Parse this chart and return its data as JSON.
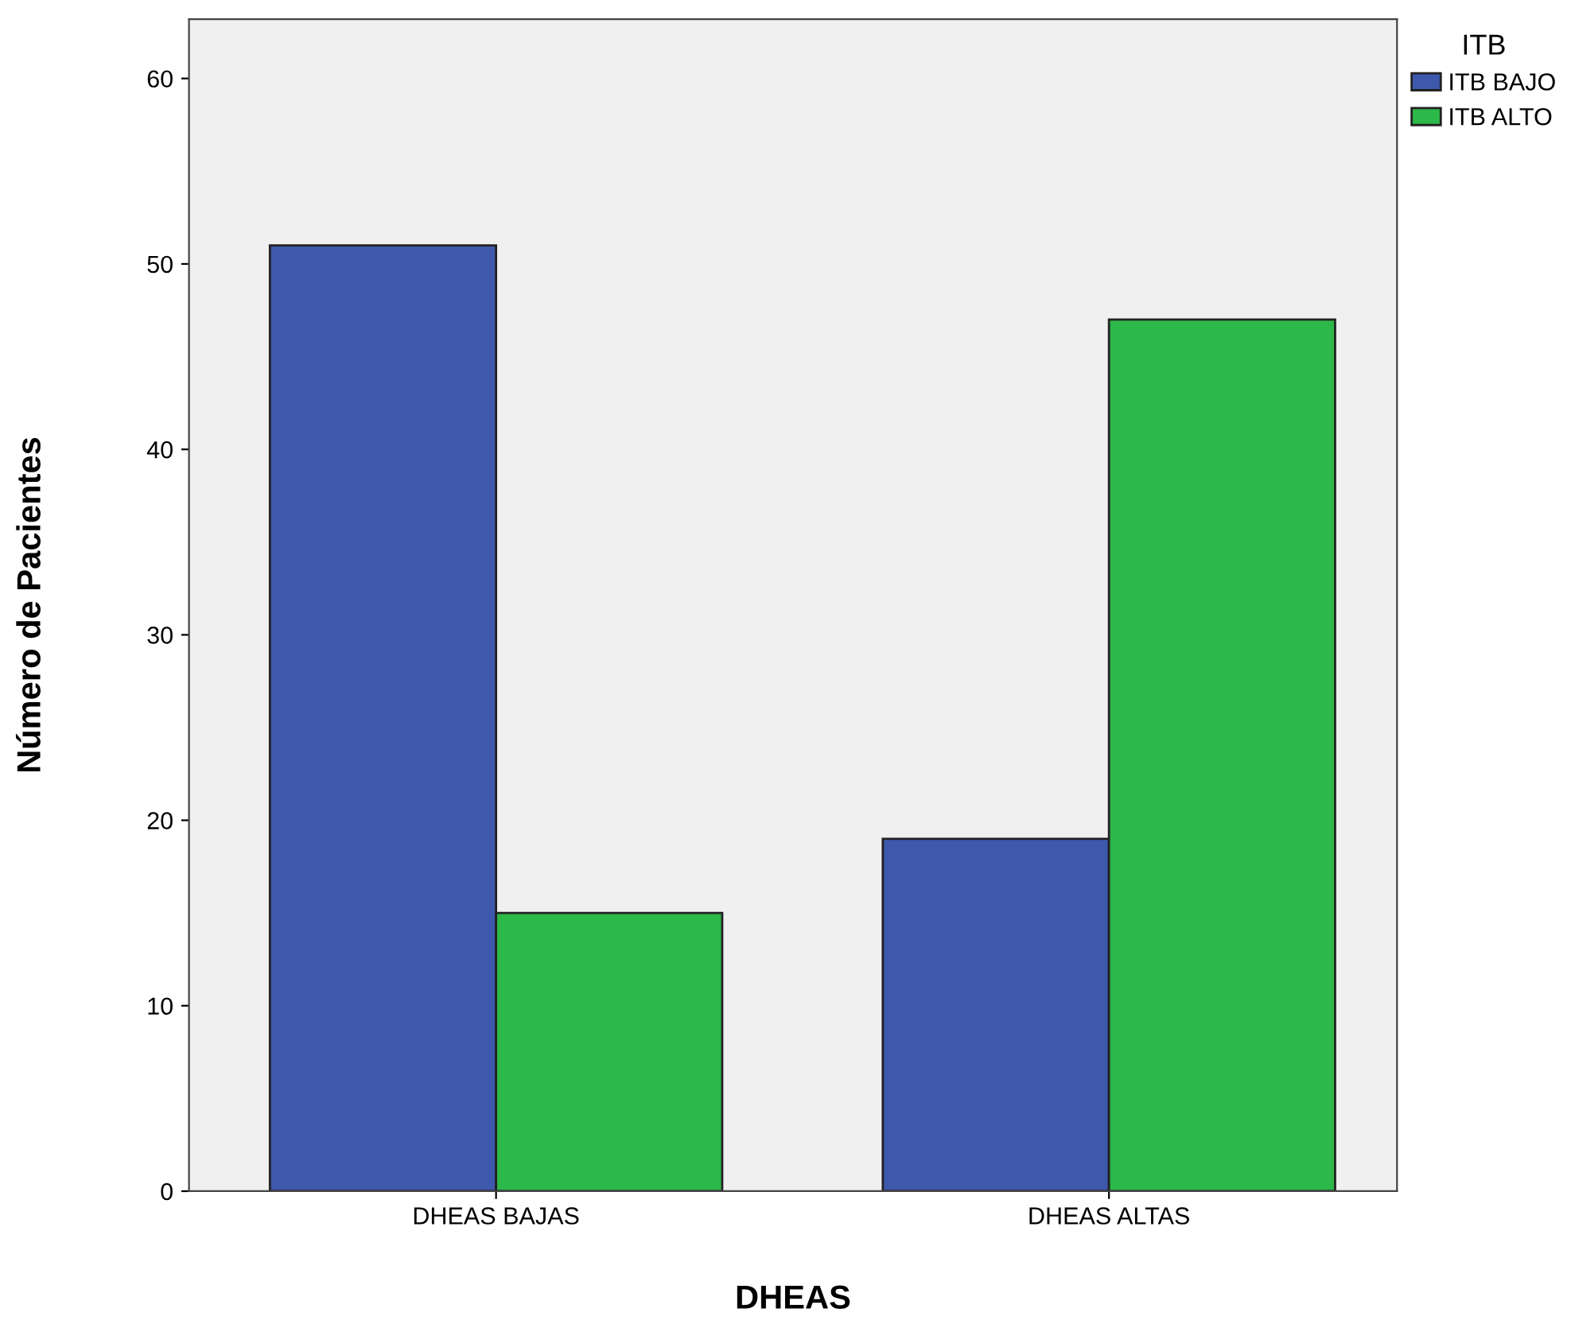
{
  "chart_data": {
    "type": "bar",
    "xlabel": "DHEAS",
    "ylabel": "Número de Pacientes",
    "legend_title": "ITB",
    "categories": [
      "DHEAS BAJAS",
      "DHEAS ALTAS"
    ],
    "series": [
      {
        "name": "ITB BAJO",
        "color": "#3e58ac",
        "values": [
          51,
          19
        ]
      },
      {
        "name": "ITB ALTO",
        "color": "#2db84a",
        "values": [
          15,
          47
        ]
      }
    ],
    "ylim": [
      0,
      63.2
    ],
    "yticks": [
      0,
      10,
      20,
      30,
      40,
      50,
      60
    ],
    "grid": false,
    "legend": "top right"
  }
}
